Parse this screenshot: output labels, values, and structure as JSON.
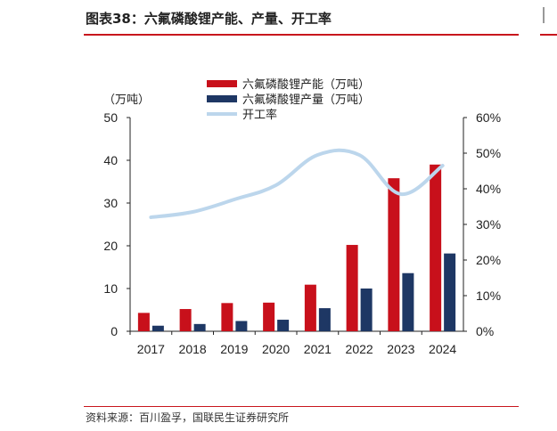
{
  "header": {
    "title": "图表38：六氟磷酸锂产能、产量、开工率"
  },
  "footer": {
    "source": "资料来源：百川盈孚，国联民生证券研究所"
  },
  "colors": {
    "capacity": "#c8101b",
    "output": "#1e3764",
    "utilization": "#bcd6ec",
    "rule": "#c8161d"
  },
  "chart_data": {
    "type": "bar",
    "unit_label": "（万吨）",
    "categories": [
      "2017",
      "2018",
      "2019",
      "2020",
      "2021",
      "2022",
      "2023",
      "2024"
    ],
    "y_left": {
      "lim": [
        0,
        50
      ],
      "ticks": [
        "0",
        "10",
        "20",
        "30",
        "40",
        "50"
      ]
    },
    "y_right": {
      "lim": [
        0,
        60
      ],
      "ticks": [
        "0%",
        "10%",
        "20%",
        "30%",
        "40%",
        "50%",
        "60%"
      ]
    },
    "series": [
      {
        "name": "六氟磷酸锂产能（万吨）",
        "kind": "bar",
        "axis": "left",
        "values": [
          4.3,
          5.2,
          6.6,
          6.7,
          10.9,
          20.2,
          35.8,
          39.0
        ]
      },
      {
        "name": "六氟磷酸锂产量（万吨）",
        "kind": "bar",
        "axis": "left",
        "values": [
          1.3,
          1.7,
          2.4,
          2.7,
          5.4,
          10.0,
          13.6,
          18.2
        ]
      },
      {
        "name": "开工率",
        "kind": "line",
        "axis": "right",
        "values": [
          32,
          33.5,
          37,
          41,
          49.5,
          49.5,
          38.5,
          46.5
        ]
      }
    ],
    "grid": false,
    "legend": "top"
  }
}
